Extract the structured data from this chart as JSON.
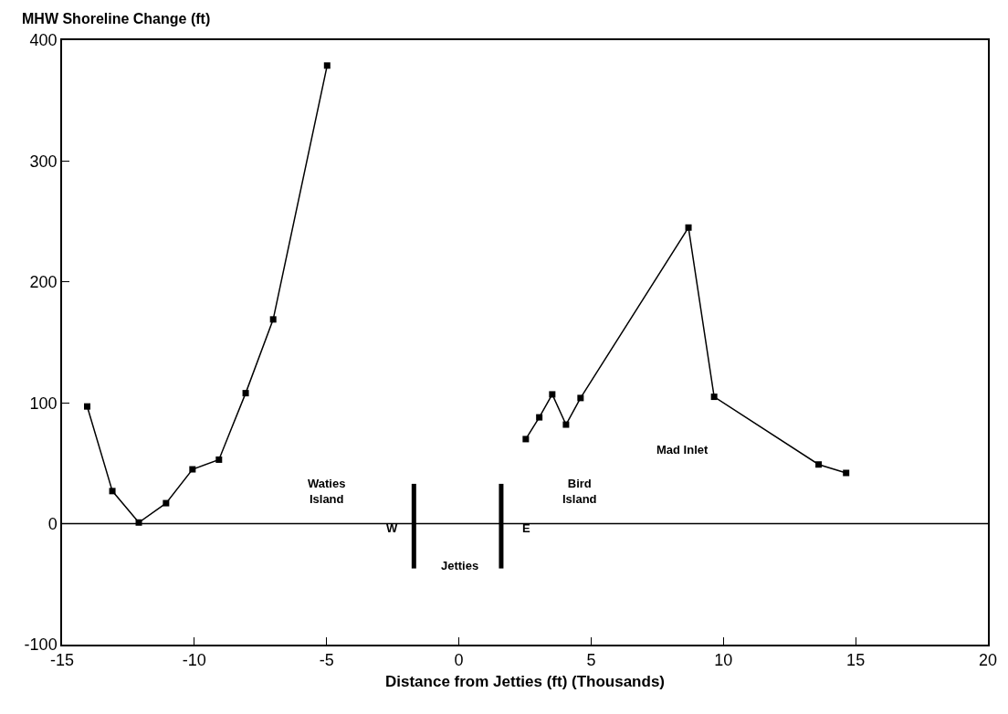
{
  "chart_data": {
    "type": "line",
    "xlabel": "Distance from Jetties (ft) (Thousands)",
    "ylabel": "MHW Shoreline Change (ft)",
    "xlim": [
      -15,
      20
    ],
    "xticks": [
      -15,
      -10,
      -5,
      0,
      5,
      10,
      15,
      20
    ],
    "ylim": [
      -100,
      400
    ],
    "yticks": [
      -100,
      0,
      100,
      200,
      300,
      400
    ],
    "marker": "square",
    "line_style": "solid",
    "series": [
      {
        "color": "#000000",
        "x": [
          -14.05,
          -13.1,
          -12.1,
          -11.07,
          -10.07,
          -9.07,
          -8.06,
          -7.02,
          -4.98
        ],
        "values": [
          97,
          27,
          1,
          17,
          45,
          53,
          108,
          169,
          379
        ]
      },
      {
        "color": "#000000",
        "x": [
          2.53,
          3.04,
          3.53,
          4.05,
          4.6,
          8.68,
          9.65,
          13.6,
          14.64
        ],
        "values": [
          70,
          88,
          107,
          82,
          104,
          245,
          105,
          49,
          42
        ]
      },
      {
        "color": "#000000",
        "marker": "none",
        "x": [
          -1.7,
          -1.7
        ],
        "values": [
          33,
          -37
        ]
      },
      {
        "color": "#000000",
        "marker": "none",
        "x": [
          1.6,
          1.6
        ],
        "values": [
          33,
          -37
        ]
      }
    ],
    "ref_lines": [
      {
        "axis": "y",
        "value": 0,
        "color": "#000000"
      }
    ],
    "annotations": [
      "Waties\nIsland",
      "W",
      "E",
      "Bird\nIsland",
      "Jetties",
      "Mad Inlet"
    ]
  }
}
